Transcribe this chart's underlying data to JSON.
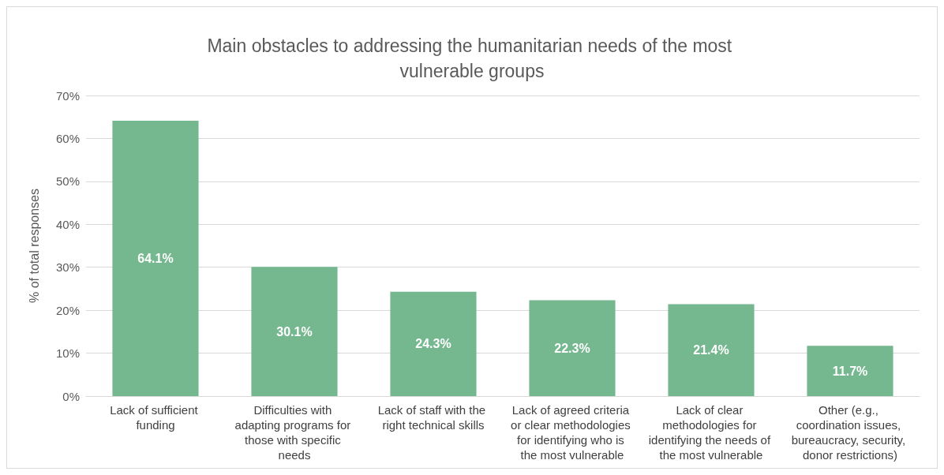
{
  "chart_data": {
    "type": "bar",
    "title": "Main obstacles to addressing the humanitarian needs of the most vulnerable groups",
    "ylabel": "% of total responses",
    "categories": [
      "Lack of sufficient funding",
      "Difficulties with adapting programs for those with specific needs",
      "Lack of staff with the right technical skills",
      "Lack of agreed criteria or clear methodologies for identifying who is the most vulnerable",
      "Lack of clear methodologies for identifying the needs of the most vulnerable",
      "Other (e.g., coordination issues, bureaucracy, security, donor restrictions)"
    ],
    "values": [
      64.1,
      30.1,
      24.3,
      22.3,
      21.4,
      11.7
    ],
    "value_labels": [
      "64.1%",
      "30.1%",
      "24.3%",
      "22.3%",
      "21.4%",
      "11.7%"
    ],
    "color": "#75b78e",
    "ylim": [
      0,
      70
    ],
    "yticks": [
      {
        "value": 0,
        "label": "0%"
      },
      {
        "value": 10,
        "label": "10%"
      },
      {
        "value": 20,
        "label": "20%"
      },
      {
        "value": 30,
        "label": "30%"
      },
      {
        "value": 40,
        "label": "40%"
      },
      {
        "value": 50,
        "label": "50%"
      },
      {
        "value": 60,
        "label": "60%"
      },
      {
        "value": 70,
        "label": "70%"
      }
    ],
    "grid": "y"
  }
}
